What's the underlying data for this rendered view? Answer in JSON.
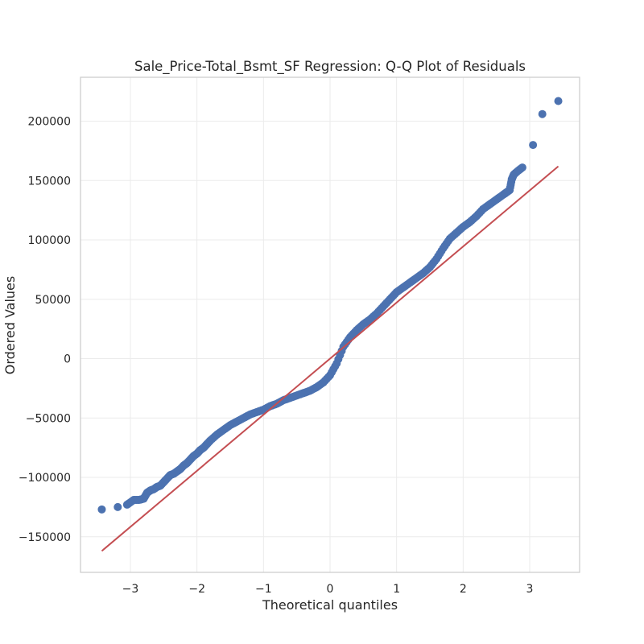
{
  "chart_data": {
    "type": "scatter",
    "title": "Sale_Price-Total_Bsmt_SF Regression: Q-Q Plot of Residuals",
    "xlabel": "Theoretical quantiles",
    "ylabel": "Ordered Values",
    "xlim": [
      -3.75,
      3.75
    ],
    "ylim": [
      -180000,
      237000
    ],
    "xticks": [
      -3,
      -2,
      -1,
      0,
      1,
      2,
      3
    ],
    "xtick_labels": [
      "−3",
      "−2",
      "−1",
      "0",
      "1",
      "2",
      "3"
    ],
    "yticks": [
      -150000,
      -100000,
      -50000,
      0,
      50000,
      100000,
      150000,
      200000
    ],
    "ytick_labels": [
      "−150000",
      "−100000",
      "−50000",
      "0",
      "50000",
      "100000",
      "150000",
      "200000"
    ],
    "grid": true,
    "points_color": "#4c72b0",
    "line_color": "#c44e52",
    "fit_line": {
      "x": [
        -3.43,
        3.43
      ],
      "y": [
        -162000,
        162000
      ]
    },
    "points": {
      "x": [
        -3.43,
        -3.19,
        -3.05,
        -2.95,
        -2.87,
        -2.8,
        -2.75,
        -2.7,
        -2.65,
        -2.6,
        -2.55,
        -2.5,
        -2.45,
        -2.4,
        -2.35,
        -2.3,
        -2.25,
        -2.2,
        -2.15,
        -2.1,
        -2.05,
        -2.0,
        -1.95,
        -1.9,
        -1.85,
        -1.8,
        -1.7,
        -1.6,
        -1.5,
        -1.4,
        -1.3,
        -1.2,
        -1.1,
        -1.0,
        -0.9,
        -0.8,
        -0.7,
        -0.6,
        -0.5,
        -0.4,
        -0.3,
        -0.2,
        -0.1,
        0.0,
        0.1,
        0.2,
        0.3,
        0.4,
        0.5,
        0.6,
        0.7,
        0.8,
        0.9,
        1.0,
        1.1,
        1.2,
        1.3,
        1.4,
        1.5,
        1.6,
        1.7,
        1.8,
        1.9,
        2.0,
        2.1,
        2.2,
        2.3,
        2.4,
        2.5,
        2.6,
        2.65,
        2.7,
        2.73,
        2.76,
        2.82,
        2.89,
        3.05,
        3.19,
        3.43
      ],
      "y": [
        -127000,
        -125000,
        -123000,
        -119000,
        -119000,
        -118000,
        -113000,
        -111000,
        -110000,
        -108000,
        -107000,
        -104000,
        -101000,
        -98000,
        -97000,
        -95000,
        -93000,
        -90000,
        -88000,
        -85000,
        -82000,
        -80000,
        -77000,
        -75000,
        -72000,
        -69000,
        -64000,
        -60000,
        -56000,
        -53000,
        -50000,
        -47000,
        -45000,
        -43000,
        -40000,
        -38000,
        -35000,
        -33000,
        -31000,
        -29000,
        -27000,
        -24000,
        -20000,
        -14000,
        -4000,
        10000,
        18000,
        24000,
        29000,
        33000,
        38000,
        44000,
        50000,
        56000,
        60000,
        64000,
        68000,
        72000,
        77000,
        84000,
        93000,
        101000,
        106000,
        111000,
        115000,
        120000,
        126000,
        130000,
        134000,
        138000,
        140000,
        142000,
        151000,
        155000,
        158000,
        161000,
        180000,
        206000,
        217000
      ]
    }
  }
}
